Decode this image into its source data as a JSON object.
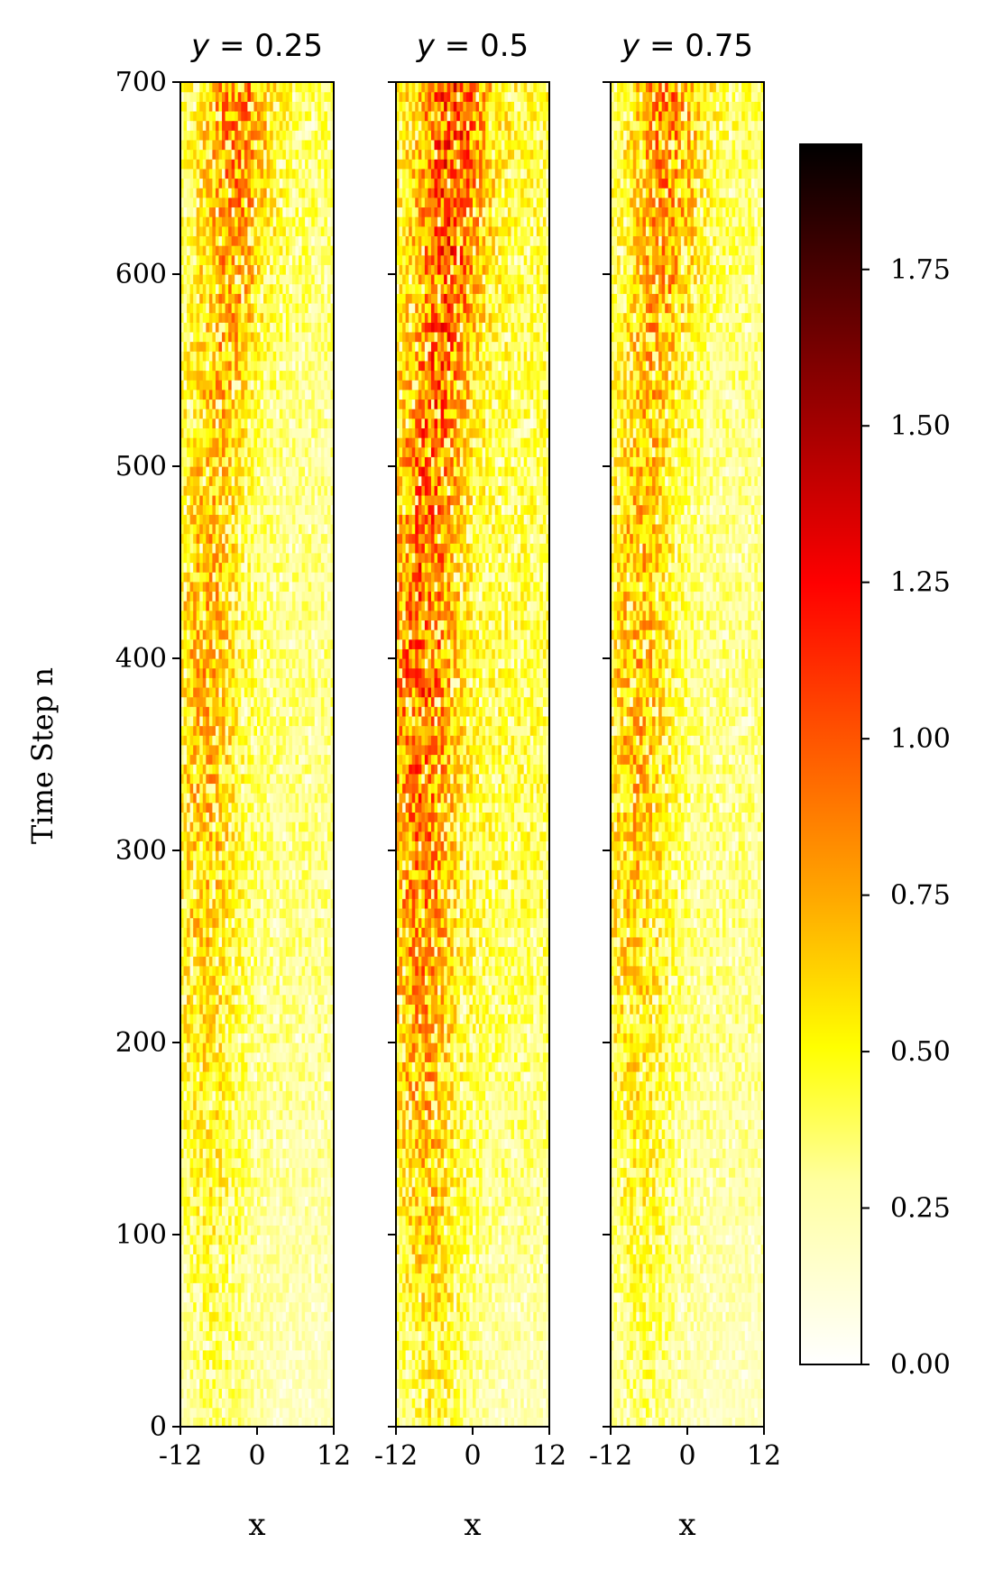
{
  "chart_data": {
    "type": "heatmap",
    "ylabel": "Time Step n",
    "ylim": [
      0,
      700
    ],
    "yticks": [
      0,
      100,
      200,
      300,
      400,
      500,
      600,
      700
    ],
    "xlim": [
      -12,
      12
    ],
    "colormap": "hot_r",
    "colorbar": {
      "range": [
        0,
        1.95
      ],
      "ticks": [
        0.0,
        0.25,
        0.5,
        0.75,
        1.0,
        1.25,
        1.5,
        1.75
      ],
      "tick_labels": [
        "0.00",
        "0.25",
        "0.50",
        "0.75",
        "1.00",
        "1.25",
        "1.50",
        "1.75"
      ],
      "colors": [
        "#ffffff",
        "#ffff80",
        "#ffff00",
        "#ffaa00",
        "#ff5500",
        "#ff0000",
        "#800000",
        "#000000"
      ]
    },
    "panels": [
      {
        "title": "y = 0.25",
        "title_var": "y",
        "title_value": "0.25",
        "xlabel": "x",
        "xticks": [
          -12,
          0,
          12
        ],
        "xtick_labels": [
          "-12",
          "0",
          "12"
        ],
        "show_ytick_labels": true,
        "intensity_profile": {
          "time": [
            0,
            100,
            200,
            300,
            400,
            500,
            600,
            700
          ],
          "peak_x": [
            -6,
            -7,
            -8,
            -8,
            -8,
            -7,
            -4,
            -3
          ],
          "peak_value": [
            0.35,
            0.45,
            0.55,
            0.65,
            0.7,
            0.65,
            0.75,
            0.85
          ],
          "background_value": [
            0.2,
            0.25,
            0.3,
            0.32,
            0.32,
            0.3,
            0.35,
            0.38
          ]
        }
      },
      {
        "title": "y = 0.5",
        "title_var": "y",
        "title_value": "0.5",
        "xlabel": "x",
        "xticks": [
          -12,
          0,
          12
        ],
        "xtick_labels": [
          "-12",
          "0",
          "12"
        ],
        "show_ytick_labels": false,
        "intensity_profile": {
          "time": [
            0,
            100,
            200,
            300,
            400,
            500,
            600,
            700
          ],
          "peak_x": [
            -6,
            -7,
            -8,
            -8,
            -8,
            -7,
            -4,
            -3
          ],
          "peak_value": [
            0.45,
            0.6,
            0.75,
            0.85,
            0.95,
            0.9,
            0.95,
            1.0
          ],
          "background_value": [
            0.22,
            0.3,
            0.36,
            0.4,
            0.42,
            0.4,
            0.42,
            0.45
          ]
        }
      },
      {
        "title": "y = 0.75",
        "title_var": "y",
        "title_value": "0.75",
        "xlabel": "x",
        "xticks": [
          -12,
          0,
          12
        ],
        "xtick_labels": [
          "-12",
          "0",
          "12"
        ],
        "show_ytick_labels": false,
        "intensity_profile": {
          "time": [
            0,
            100,
            200,
            300,
            400,
            500,
            600,
            700
          ],
          "peak_x": [
            -6,
            -7,
            -8,
            -8,
            -8,
            -7,
            -4,
            -3
          ],
          "peak_value": [
            0.35,
            0.45,
            0.55,
            0.65,
            0.7,
            0.65,
            0.75,
            0.85
          ],
          "background_value": [
            0.2,
            0.25,
            0.3,
            0.32,
            0.32,
            0.3,
            0.35,
            0.38
          ]
        }
      }
    ]
  }
}
